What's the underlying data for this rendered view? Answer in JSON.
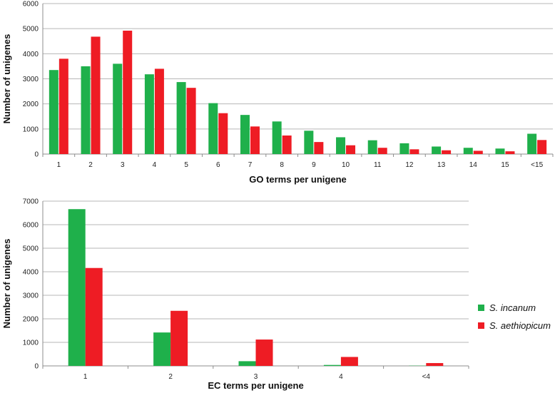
{
  "colors": {
    "series1": "#1fb04b",
    "series2": "#ee1c24",
    "grid": "#b7b7b7",
    "axis": "#8c8c8c"
  },
  "legend": {
    "items": [
      {
        "label": "S. incanum",
        "color": "#1fb04b"
      },
      {
        "label": "S. aethiopicum",
        "color": "#ee1c24"
      }
    ],
    "placement": "right"
  },
  "chart_data": [
    {
      "type": "bar",
      "xlabel": "GO terms per unigene",
      "ylabel": "Number of unigenes",
      "ylim": [
        0,
        6000
      ],
      "yticks": [
        0,
        1000,
        2000,
        3000,
        4000,
        5000,
        6000
      ],
      "grid": true,
      "categories": [
        "1",
        "2",
        "3",
        "4",
        "5",
        "6",
        "7",
        "8",
        "9",
        "10",
        "11",
        "12",
        "13",
        "14",
        "15",
        "<15"
      ],
      "series": [
        {
          "name": "S. incanum",
          "values": [
            3350,
            3500,
            3600,
            3180,
            2870,
            2030,
            1560,
            1300,
            930,
            670,
            550,
            430,
            300,
            250,
            220,
            810
          ]
        },
        {
          "name": "S. aethiopicum",
          "values": [
            3800,
            4680,
            4920,
            3400,
            2640,
            1630,
            1100,
            740,
            480,
            350,
            250,
            190,
            150,
            130,
            110,
            560
          ]
        }
      ]
    },
    {
      "type": "bar",
      "xlabel": "EC terms per unigene",
      "ylabel": "Number of unigenes",
      "ylim": [
        0,
        7000
      ],
      "yticks": [
        0,
        1000,
        2000,
        3000,
        4000,
        5000,
        6000,
        7000
      ],
      "grid": true,
      "categories": [
        "1",
        "2",
        "3",
        "4",
        "<4"
      ],
      "series": [
        {
          "name": "S. incanum",
          "values": [
            6660,
            1420,
            200,
            40,
            10
          ]
        },
        {
          "name": "S. aethiopicum",
          "values": [
            4160,
            2340,
            1120,
            380,
            120
          ]
        }
      ]
    }
  ]
}
